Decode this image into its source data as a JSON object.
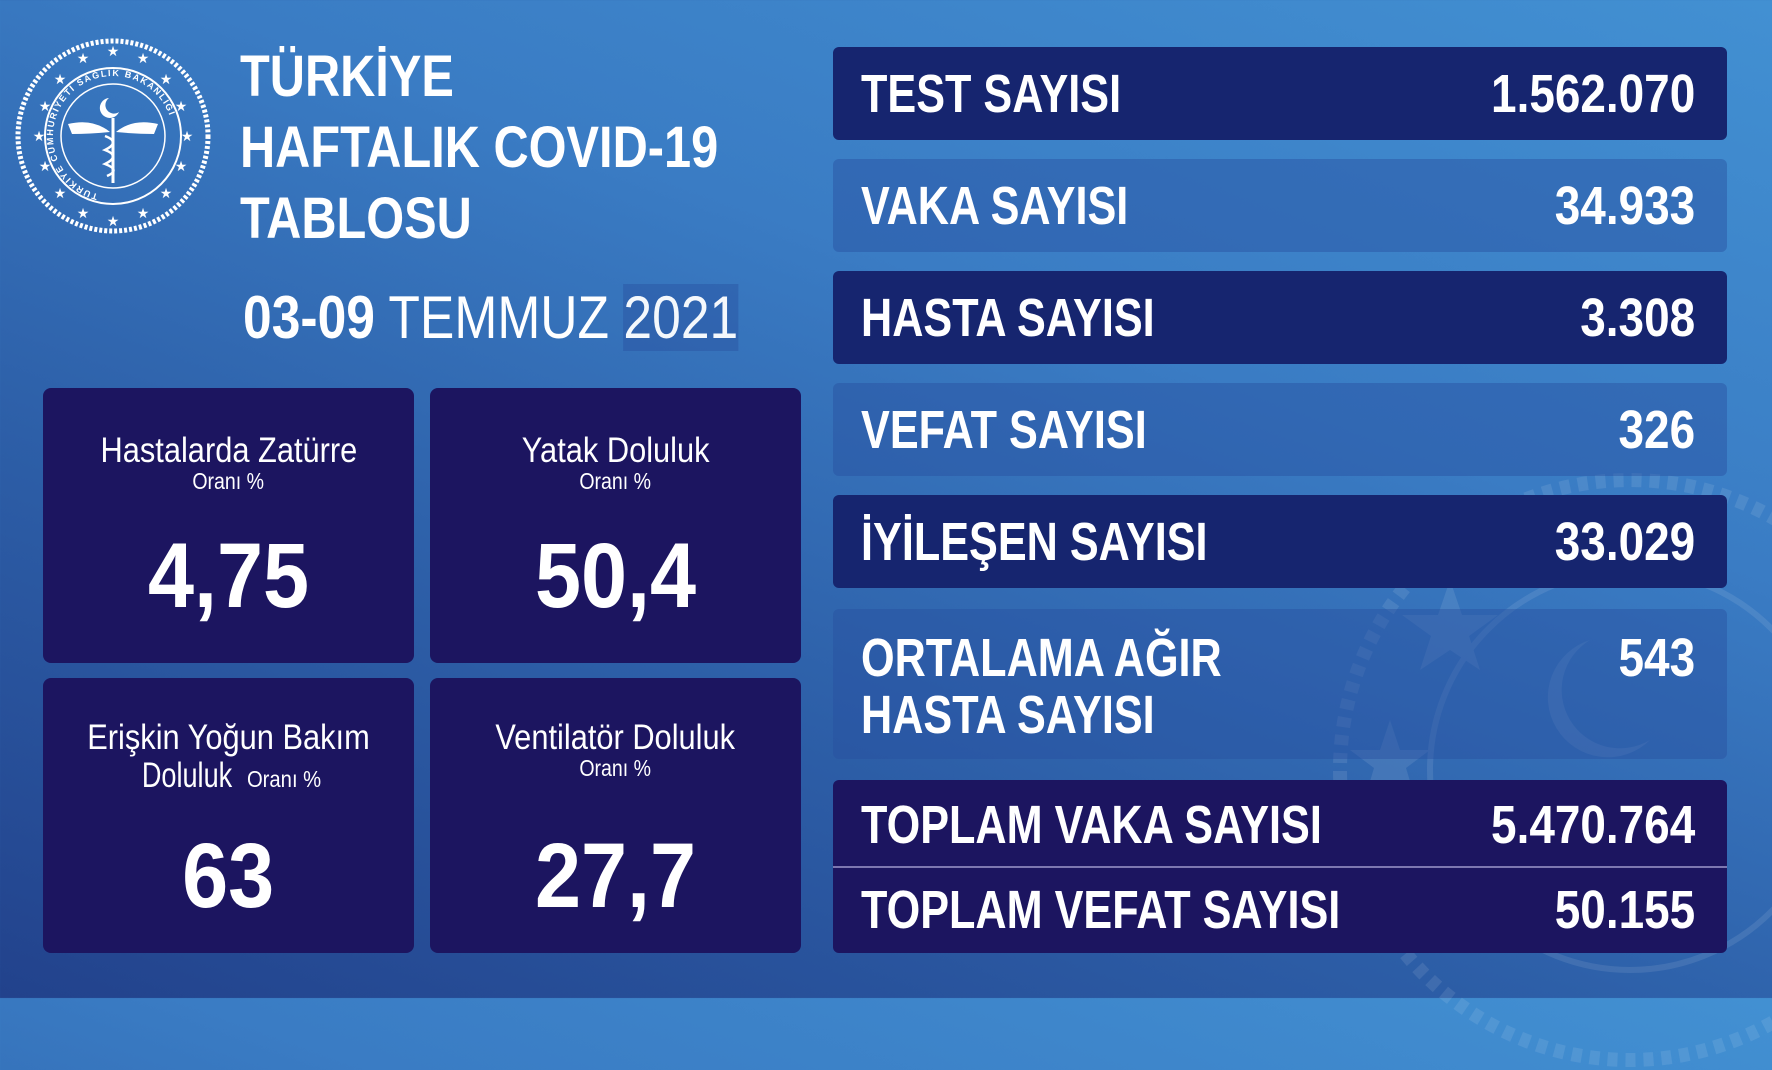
{
  "header": {
    "title_lines": [
      "TÜRKİYE",
      "HAFTALIK COVID-19",
      "TABLOSU"
    ],
    "date_days": "03-09",
    "date_month": "TEMMUZ",
    "date_year": "2021"
  },
  "logo": {
    "text": "TÜRKİYE CUMHURİYETİ SAĞLIK BAKANLIĞI"
  },
  "cards": [
    {
      "title": "Hastalarda Zatürre",
      "subtitle": "Oranı %",
      "value": "4,75"
    },
    {
      "title": "Yatak Doluluk",
      "subtitle": "Oranı %",
      "value": "50,4"
    },
    {
      "title": "Erişkin Yoğun Bakım",
      "title2": "Doluluk",
      "subtitle": "Oranı %",
      "value": "63"
    },
    {
      "title": "Ventilatör Doluluk",
      "subtitle": "Oranı %",
      "value": "27,7"
    }
  ],
  "stats": [
    {
      "label": "TEST SAYISI",
      "value": "1.562.070"
    },
    {
      "label": "VAKA SAYISI",
      "value": "34.933"
    },
    {
      "label": "HASTA SAYISI",
      "value": "3.308"
    },
    {
      "label": "VEFAT SAYISI",
      "value": "326"
    },
    {
      "label": "İYİLEŞEN SAYISI",
      "value": "33.029"
    },
    {
      "label": "ORTALAMA AĞIR",
      "label2": "HASTA SAYISI",
      "value": "543"
    }
  ],
  "totals": [
    {
      "label": "TOPLAM VAKA SAYISI",
      "value": "5.470.764"
    },
    {
      "label": "TOPLAM VEFAT SAYISI",
      "value": "50.155"
    }
  ],
  "colors": {
    "dark_row": "#16256f",
    "card": "#1c1560",
    "background": "#3a7cc4"
  }
}
